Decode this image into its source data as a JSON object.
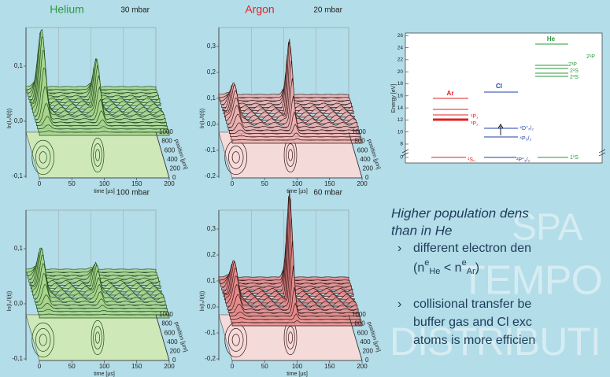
{
  "panels": [
    {
      "gas": "Helium",
      "pressure": "30 mbar",
      "y_label": "ln(I₀/I(t))",
      "y_ticks": [
        "-0,1",
        "0,0",
        "0,1"
      ],
      "x_label": "time [µs]",
      "x_ticks": [
        "0",
        "50",
        "100",
        "150",
        "200"
      ],
      "depth_label": "position [µm]",
      "depth_ticks": [
        "0",
        "200",
        "400",
        "600",
        "800",
        "1000"
      ]
    },
    {
      "gas": "Argon",
      "pressure": "20 mbar",
      "y_label": "ln(I₀/I(t))",
      "y_ticks": [
        "-0,2",
        "-0,1",
        "0,0",
        "0,1",
        "0,2",
        "0,3"
      ],
      "x_label": "time [µs]",
      "x_ticks": [
        "0",
        "50",
        "100",
        "150",
        "200"
      ],
      "depth_label": "position [µm]",
      "depth_ticks": [
        "0",
        "200",
        "400",
        "600",
        "800",
        "1000"
      ]
    },
    {
      "pressure": "100 mbar",
      "y_label": "ln(I₀/I(t))",
      "y_ticks": [
        "-0,1",
        "0,0",
        "0,1"
      ],
      "x_label": "time [µs]",
      "x_ticks": [
        "0",
        "50",
        "100",
        "150",
        "200"
      ],
      "depth_label": "position [µm]",
      "depth_ticks": [
        "0",
        "200",
        "400",
        "600",
        "800",
        "1000"
      ]
    },
    {
      "pressure": "60 mbar",
      "y_label": "ln(I₀/I(t))",
      "y_ticks": [
        "-0,2",
        "-0,1",
        "0,0",
        "0,1",
        "0,2",
        "0,3"
      ],
      "x_label": "time [µs]",
      "x_ticks": [
        "0",
        "50",
        "100",
        "150",
        "200"
      ],
      "depth_label": "position [µm]",
      "depth_ticks": [
        "0",
        "200",
        "400",
        "600",
        "800",
        "1000"
      ]
    }
  ],
  "energy_diagram": {
    "y_label": "Energy [eV]",
    "y_ticks": [
      "0",
      "8",
      "10",
      "12",
      "14",
      "16",
      "18",
      "20",
      "22",
      "24",
      "26"
    ],
    "species": [
      "Ar",
      "Cl",
      "He"
    ],
    "level_labels": [
      "2¹P",
      "2³P",
      "2¹S",
      "2³S",
      "¹P₁",
      "³P₂",
      "⁴D°₇/₂",
      "⁴P₅/₂",
      "¹S₀",
      "²P°₃/₂",
      "1¹S"
    ]
  },
  "text": {
    "heading": [
      "Higher population dens",
      "than in He"
    ],
    "bullets": [
      "different electron den",
      "collisional transfer be",
      "buffer gas and Cl exc",
      "atoms is more efficien"
    ],
    "formula": [
      "(n",
      "e",
      "He",
      " < n",
      "e",
      "Ar",
      ")"
    ],
    "watermark": [
      "SPA",
      "TEMPO",
      "DISTRIBUTI"
    ]
  }
}
